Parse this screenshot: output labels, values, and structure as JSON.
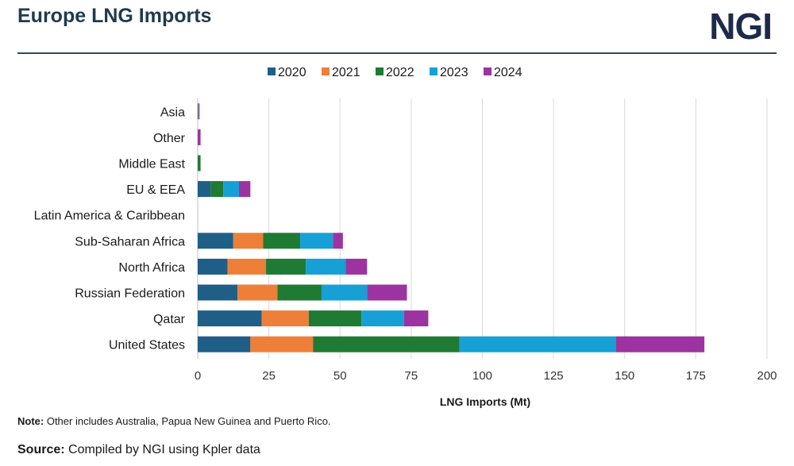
{
  "header": {
    "title": "Europe LNG Imports",
    "logo": "NGI"
  },
  "footer": {
    "note_label": "Note:",
    "note_text": " Other includes Australia, Papua New Guinea and Puerto Rico.",
    "source_label": "Source:",
    "source_text": " Compiled by NGI using Kpler data"
  },
  "chart_data": {
    "type": "bar",
    "orientation": "horizontal",
    "stacked": true,
    "categories": [
      "Asia",
      "Other",
      "Middle East",
      "EU & EEA",
      "Latin America & Caribbean",
      "Sub-Saharan Africa",
      "North Africa",
      "Russian Federation",
      "Qatar",
      "United States"
    ],
    "series": [
      {
        "name": "2020",
        "color": "#1f5f87",
        "values": [
          0.3,
          0,
          0,
          4.5,
          0,
          12.5,
          10.5,
          14,
          22.5,
          18.5
        ]
      },
      {
        "name": "2021",
        "color": "#ee7f39",
        "values": [
          0.2,
          0,
          0,
          0,
          0,
          10.5,
          13.5,
          14,
          16.5,
          22
        ]
      },
      {
        "name": "2022",
        "color": "#1f7a34",
        "values": [
          0,
          0,
          1,
          4.5,
          0,
          13,
          14,
          15.5,
          18.5,
          51.5
        ]
      },
      {
        "name": "2023",
        "color": "#16a0d6",
        "values": [
          0,
          0,
          0,
          5.5,
          0,
          11.5,
          14,
          16,
          15,
          55
        ]
      },
      {
        "name": "2024",
        "color": "#9c33a0",
        "values": [
          0.2,
          1,
          0,
          4,
          0,
          3.5,
          7.5,
          14,
          8.5,
          31
        ]
      }
    ],
    "xlabel": "LNG Imports (Mt)",
    "xlim": [
      0,
      200
    ],
    "xticks": [
      0,
      25,
      50,
      75,
      100,
      125,
      150,
      175,
      200
    ],
    "grid": "vertical",
    "legend": "top-center"
  }
}
